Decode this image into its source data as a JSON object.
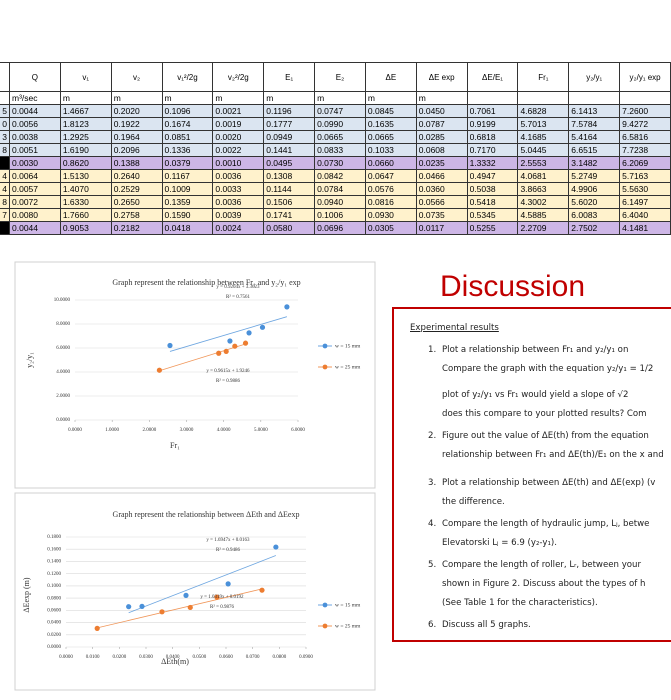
{
  "table": {
    "headers": [
      "Q",
      "v₁",
      "v₂",
      "v₁²/2g",
      "v₂²/2g",
      "E₁",
      "E₂",
      "ΔE",
      "ΔE exp",
      "ΔE/E₁",
      "Fr₁",
      "y₂/y₁",
      "y₂/y₁ exp"
    ],
    "units": [
      "m³/sec",
      "m",
      "m",
      "m",
      "m",
      "m",
      "m",
      "m",
      "m"
    ],
    "row_labels": [
      "5",
      "0",
      "3",
      "8",
      null,
      "4",
      "4",
      "8",
      "7",
      null
    ],
    "rows": [
      [
        "0.0044",
        "1.4667",
        "0.2020",
        "0.1096",
        "0.0021",
        "0.1196",
        "0.0747",
        "0.0845",
        "0.0450",
        "0.7061",
        "4.6828",
        "6.1413",
        "7.2600"
      ],
      [
        "0.0056",
        "1.8123",
        "0.1922",
        "0.1674",
        "0.0019",
        "0.1777",
        "0.0990",
        "0.1635",
        "0.0787",
        "0.9199",
        "5.7013",
        "7.5784",
        "9.4272"
      ],
      [
        "0.0038",
        "1.2925",
        "0.1964",
        "0.0851",
        "0.0020",
        "0.0949",
        "0.0665",
        "0.0665",
        "0.0285",
        "0.6818",
        "4.1685",
        "5.4164",
        "6.5816"
      ],
      [
        "0.0051",
        "1.6190",
        "0.2096",
        "0.1336",
        "0.0022",
        "0.1441",
        "0.0833",
        "0.1033",
        "0.0608",
        "0.7170",
        "5.0445",
        "6.6515",
        "7.7238"
      ],
      [
        "0.0030",
        "0.8620",
        "0.1388",
        "0.0379",
        "0.0010",
        "0.0495",
        "0.0730",
        "0.0660",
        "0.0235",
        "1.3332",
        "2.5553",
        "3.1482",
        "6.2069"
      ],
      [
        "0.0064",
        "1.5130",
        "0.2640",
        "0.1167",
        "0.0036",
        "0.1308",
        "0.0842",
        "0.0647",
        "0.0466",
        "0.4947",
        "4.0681",
        "5.2749",
        "5.7163"
      ],
      [
        "0.0057",
        "1.4070",
        "0.2529",
        "0.1009",
        "0.0033",
        "0.1144",
        "0.0784",
        "0.0576",
        "0.0360",
        "0.5038",
        "3.8663",
        "4.9906",
        "5.5630"
      ],
      [
        "0.0072",
        "1.6330",
        "0.2650",
        "0.1359",
        "0.0036",
        "0.1506",
        "0.0940",
        "0.0816",
        "0.0566",
        "0.5418",
        "4.3002",
        "5.6020",
        "6.1497"
      ],
      [
        "0.0080",
        "1.7660",
        "0.2758",
        "0.1590",
        "0.0039",
        "0.1741",
        "0.1006",
        "0.0930",
        "0.0735",
        "0.5345",
        "4.5885",
        "6.0083",
        "6.4040"
      ],
      [
        "0.0044",
        "0.9053",
        "0.2182",
        "0.0418",
        "0.0024",
        "0.0580",
        "0.0696",
        "0.0305",
        "0.0117",
        "0.5255",
        "2.2709",
        "2.7502",
        "4.1481"
      ]
    ]
  },
  "chart_data": [
    {
      "type": "scatter",
      "title": "Graph represent the relationship between Fr₁ and y₂/y₁ exp",
      "x_label": "Fr₁",
      "y_label": "y₂/y₁",
      "xlim": [
        0,
        6
      ],
      "ylim": [
        0,
        10
      ],
      "xticks": [
        {
          "value": 0,
          "label": "0.0000"
        },
        {
          "value": 1,
          "label": "1.0000"
        },
        {
          "value": 2,
          "label": "2.0000"
        },
        {
          "value": 3,
          "label": "3.0000"
        },
        {
          "value": 4,
          "label": "4.0000"
        },
        {
          "value": 5,
          "label": "5.0000"
        },
        {
          "value": 6,
          "label": "6.0000"
        }
      ],
      "yticks": [
        {
          "value": 0,
          "label": "0.0000"
        },
        {
          "value": 2,
          "label": "2.0000"
        },
        {
          "value": 4,
          "label": "4.0000"
        },
        {
          "value": 6,
          "label": "6.0000"
        },
        {
          "value": 8,
          "label": "8.0000"
        },
        {
          "value": 10,
          "label": "10.0000"
        }
      ],
      "grid": true,
      "legend": "right",
      "series": [
        {
          "name": "w = 15 mm",
          "color": "#4a90d9",
          "x": [
            4.6828,
            5.7013,
            4.1685,
            5.0445,
            2.5553
          ],
          "values": [
            7.26,
            9.4272,
            6.5816,
            7.7238,
            6.2069
          ],
          "trendline": {
            "slope": 0.9204,
            "intercept": 3.3623,
            "equation": "y = 0.9204x + 3.3623",
            "r2": "R² = 0.7561"
          }
        },
        {
          "name": "w = 25 mm",
          "color": "#ed7d31",
          "x": [
            4.0681,
            3.8663,
            4.3002,
            4.5885,
            2.2709
          ],
          "values": [
            5.7163,
            5.563,
            6.1497,
            6.404,
            4.1481
          ],
          "trendline": {
            "slope": 0.9615,
            "intercept": 1.9246,
            "equation": "y = 0.9615x + 1.9246",
            "r2": "R² = 0.9886"
          }
        }
      ]
    },
    {
      "type": "scatter",
      "title": "Graph represent the relationship between ΔEth and ΔEexp",
      "x_label": "ΔEth(m)",
      "y_label": "ΔEexp (m)",
      "xlim": [
        0,
        0.09
      ],
      "ylim": [
        0,
        0.18
      ],
      "xticks": [
        {
          "value": 0,
          "label": "0.0000"
        },
        {
          "value": 0.01,
          "label": "0.0100"
        },
        {
          "value": 0.02,
          "label": "0.0200"
        },
        {
          "value": 0.03,
          "label": "0.0300"
        },
        {
          "value": 0.04,
          "label": "0.0400"
        },
        {
          "value": 0.05,
          "label": "0.0500"
        },
        {
          "value": 0.06,
          "label": "0.0600"
        },
        {
          "value": 0.07,
          "label": "0.0700"
        },
        {
          "value": 0.08,
          "label": "0.0800"
        },
        {
          "value": 0.09,
          "label": "0.0900"
        }
      ],
      "yticks": [
        {
          "value": 0,
          "label": "0.0000"
        },
        {
          "value": 0.02,
          "label": "0.0200"
        },
        {
          "value": 0.04,
          "label": "0.0400"
        },
        {
          "value": 0.06,
          "label": "0.0600"
        },
        {
          "value": 0.08,
          "label": "0.0800"
        },
        {
          "value": 0.1,
          "label": "0.1000"
        },
        {
          "value": 0.12,
          "label": "0.1200"
        },
        {
          "value": 0.14,
          "label": "0.1400"
        },
        {
          "value": 0.16,
          "label": "0.1600"
        },
        {
          "value": 0.18,
          "label": "0.1800"
        }
      ],
      "grid": true,
      "legend": "right",
      "series": [
        {
          "name": "w = 15 mm",
          "color": "#4a90d9",
          "x": [
            0.045,
            0.0787,
            0.0285,
            0.0608,
            0.0235
          ],
          "values": [
            0.0845,
            0.1635,
            0.0665,
            0.1033,
            0.066
          ],
          "trendline": {
            "slope": 1.6947,
            "intercept": 0.0163,
            "equation": "y = 1.6947x + 0.0163",
            "r2": "R² = 0.9486"
          }
        },
        {
          "name": "w = 25 mm",
          "color": "#ed7d31",
          "x": [
            0.0466,
            0.036,
            0.0566,
            0.0735,
            0.0117
          ],
          "values": [
            0.0647,
            0.0576,
            0.0816,
            0.093,
            0.0305
          ],
          "trendline": {
            "slope": 1.0319,
            "intercept": 0.0192,
            "equation": "y = 1.0319x + 0.0192",
            "r2": "R² = 0.9876"
          }
        }
      ]
    }
  ],
  "discussion": {
    "title": "Discussion",
    "heading": "Experimental results",
    "items": [
      {
        "number": "1.",
        "lines": [
          "Plot a relationship between Fr₁ and y₂/y₁ on",
          "Compare the graph with the equation  y₂/y₁ = 1/2",
          "plot of y₂/y₁ vs Fr₁ would yield a slope of √2",
          "does this compare to your plotted results? Com"
        ]
      },
      {
        "number": "2.",
        "lines": [
          "Figure out the value of ΔE(th) from the equation",
          "relationship between Fr₁ and ΔE(th)/E₁ on the x and"
        ]
      },
      {
        "number": "3.",
        "lines": [
          "Plot a relationship between ΔE(th) and ΔE(exp) (v",
          "the difference."
        ]
      },
      {
        "number": "4.",
        "lines": [
          "Compare the length of hydraulic jump, Lⱼ, betwe",
          "Elevatorski Lⱼ = 6.9 (y₂-y₁)."
        ]
      },
      {
        "number": "5.",
        "lines": [
          "Compare the length of roller, Lᵣ, between your",
          "shown in Figure 2. Discuss about the types of h",
          "(See Table 1 for the characteristics)."
        ]
      },
      {
        "number": "6.",
        "lines": [
          "Discuss all 5 graphs."
        ]
      }
    ]
  }
}
